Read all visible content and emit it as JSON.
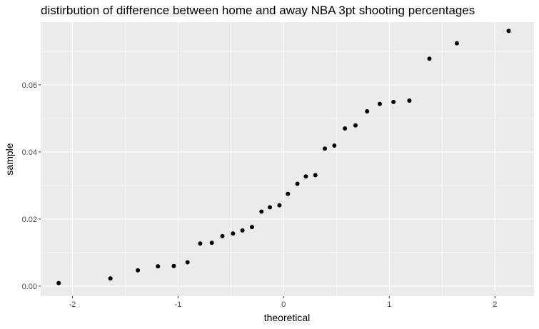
{
  "chart_data": {
    "type": "scatter",
    "title": "distirbution of difference between home and away NBA 3pt shooting percentages",
    "xlabel": "theoretical",
    "ylabel": "sample",
    "xlim": [
      -2.3,
      2.37
    ],
    "ylim": [
      -0.003,
      0.0787
    ],
    "x_ticks": [
      -2,
      -1,
      0,
      1,
      2
    ],
    "x_tick_labels": [
      "-2",
      "-1",
      "0",
      "1",
      "2"
    ],
    "y_ticks": [
      0.0,
      0.02,
      0.04,
      0.06
    ],
    "y_tick_labels": [
      "0.00",
      "0.02",
      "0.04",
      "0.06"
    ],
    "grid": true,
    "legend": "none",
    "panel_color": "#ebebeb",
    "grid_color": "#ffffff",
    "point_color": "#000000",
    "points": [
      {
        "x": -2.13,
        "y": 0.0009
      },
      {
        "x": -1.64,
        "y": 0.0023
      },
      {
        "x": -1.38,
        "y": 0.0047
      },
      {
        "x": -1.19,
        "y": 0.0059
      },
      {
        "x": -1.04,
        "y": 0.006
      },
      {
        "x": -0.91,
        "y": 0.0071
      },
      {
        "x": -0.79,
        "y": 0.0127
      },
      {
        "x": -0.68,
        "y": 0.0129
      },
      {
        "x": -0.58,
        "y": 0.0149
      },
      {
        "x": -0.48,
        "y": 0.0157
      },
      {
        "x": -0.39,
        "y": 0.0166
      },
      {
        "x": -0.3,
        "y": 0.0176
      },
      {
        "x": -0.21,
        "y": 0.0222
      },
      {
        "x": -0.13,
        "y": 0.0235
      },
      {
        "x": -0.04,
        "y": 0.0241
      },
      {
        "x": 0.04,
        "y": 0.0275
      },
      {
        "x": 0.13,
        "y": 0.0305
      },
      {
        "x": 0.21,
        "y": 0.0327
      },
      {
        "x": 0.3,
        "y": 0.0331
      },
      {
        "x": 0.39,
        "y": 0.041
      },
      {
        "x": 0.48,
        "y": 0.0419
      },
      {
        "x": 0.58,
        "y": 0.047
      },
      {
        "x": 0.68,
        "y": 0.0479
      },
      {
        "x": 0.79,
        "y": 0.0521
      },
      {
        "x": 0.91,
        "y": 0.0543
      },
      {
        "x": 1.04,
        "y": 0.0549
      },
      {
        "x": 1.19,
        "y": 0.0553
      },
      {
        "x": 1.38,
        "y": 0.0678
      },
      {
        "x": 1.64,
        "y": 0.0724
      },
      {
        "x": 2.13,
        "y": 0.0761
      }
    ]
  }
}
